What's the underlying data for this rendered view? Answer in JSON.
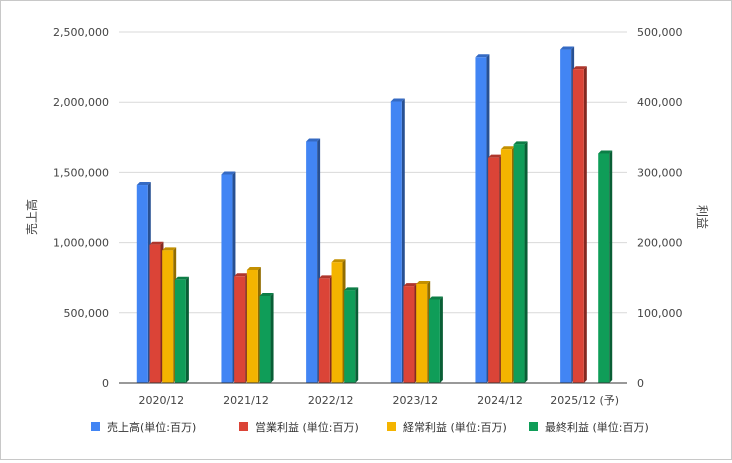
{
  "chart_data": {
    "type": "bar",
    "categories": [
      "2020/12",
      "2021/12",
      "2022/12",
      "2023/12",
      "2024/12",
      "2025/12 (予)"
    ],
    "series": [
      {
        "name": "売上高(単位:百万)",
        "axis": "left",
        "color": "#4285f4",
        "values": [
          1410000,
          1485000,
          1720000,
          2005000,
          2320000,
          2375000
        ]
      },
      {
        "name": "営業利益 (単位:百万)",
        "axis": "right",
        "color": "#db4437",
        "values": [
          197000,
          152000,
          149000,
          138000,
          321000,
          447000
        ]
      },
      {
        "name": "経常利益 (単位:百万)",
        "axis": "right",
        "color": "#f4b400",
        "values": [
          189000,
          161000,
          172000,
          141000,
          333000,
          null
        ]
      },
      {
        "name": "最終利益 (単位:百万)",
        "axis": "right",
        "color": "#0f9d58",
        "values": [
          147000,
          124000,
          132000,
          119000,
          340000,
          327000
        ]
      }
    ],
    "ylabel": "売上高",
    "y2label": "利益",
    "ylim": [
      0,
      2500000
    ],
    "y2lim": [
      0,
      500000
    ],
    "yticks": [
      "0",
      "500,000",
      "1,000,000",
      "1,500,000",
      "2,000,000",
      "2,500,000"
    ],
    "y2ticks": [
      "0",
      "100,000",
      "200,000",
      "300,000",
      "400,000",
      "500,000"
    ],
    "grid": true,
    "legend_position": "bottom"
  }
}
